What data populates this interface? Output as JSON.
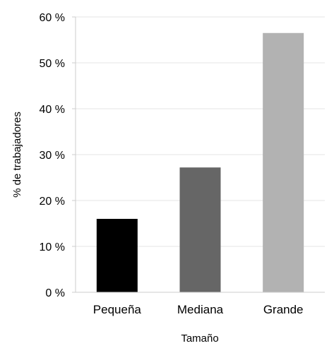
{
  "chart_data": {
    "type": "bar",
    "categories": [
      "Pequeña",
      "Mediana",
      "Grande"
    ],
    "values": [
      16,
      27.2,
      56.5
    ],
    "bar_colors": [
      "#000000",
      "#666666",
      "#b2b2b2"
    ],
    "xlabel": "Tamaño",
    "ylabel": "% de trabajadores",
    "ylim": [
      0,
      60
    ],
    "yticks": [
      0,
      10,
      20,
      30,
      40,
      50,
      60
    ],
    "ytick_labels": [
      "0 %",
      "10 %",
      "20 %",
      "30 %",
      "40 %",
      "50 %",
      "60 %"
    ],
    "grid": true,
    "legend": "none"
  }
}
